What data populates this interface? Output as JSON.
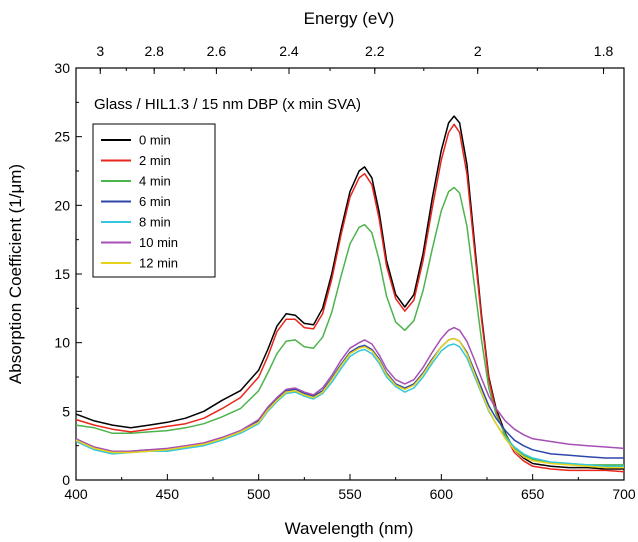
{
  "chart_data": {
    "type": "line",
    "xlabel": "Wavelength (nm)",
    "ylabel": "Absorption Coefficient (1/μm)",
    "top_axis_label": "Energy (eV)",
    "top_axis_ticks": [
      "3",
      "2.8",
      "2.6",
      "2.4",
      "2.2",
      "2",
      "1.8"
    ],
    "top_axis_tick_values_ev": [
      3,
      2.8,
      2.6,
      2.4,
      2.2,
      2,
      1.8
    ],
    "annotation": "Glass / HIL1.3 / 15 nm DBP (x min SVA)",
    "xlim": [
      400,
      700
    ],
    "ylim": [
      0,
      30
    ],
    "xticks": [
      400,
      450,
      500,
      550,
      600,
      650,
      700
    ],
    "yticks": [
      0,
      5,
      10,
      15,
      20,
      25,
      30
    ],
    "grid": false,
    "legend_position": "top-left",
    "x": [
      400,
      410,
      420,
      430,
      440,
      450,
      460,
      470,
      480,
      490,
      500,
      505,
      510,
      515,
      520,
      525,
      530,
      535,
      540,
      545,
      550,
      555,
      558,
      562,
      566,
      570,
      575,
      580,
      585,
      590,
      595,
      600,
      604,
      607,
      610,
      614,
      618,
      622,
      626,
      630,
      635,
      640,
      645,
      650,
      660,
      670,
      680,
      690,
      700
    ],
    "series": [
      {
        "name": "0 min",
        "color": "#000000",
        "values": [
          4.8,
          4.3,
          4.0,
          3.8,
          4.0,
          4.2,
          4.5,
          5.0,
          5.8,
          6.5,
          8.0,
          9.5,
          11.2,
          12.1,
          12.0,
          11.4,
          11.3,
          12.5,
          15.0,
          18.2,
          21.0,
          22.5,
          22.8,
          22.0,
          19.5,
          16.0,
          13.5,
          12.6,
          13.5,
          16.5,
          20.5,
          24.0,
          26.0,
          26.5,
          26.0,
          23.0,
          17.5,
          12.0,
          7.5,
          5.2,
          3.4,
          2.2,
          1.6,
          1.2,
          1.0,
          0.9,
          0.9,
          0.8,
          0.8
        ]
      },
      {
        "name": "2 min",
        "color": "#e8261c",
        "values": [
          4.4,
          4.0,
          3.7,
          3.5,
          3.7,
          3.9,
          4.1,
          4.5,
          5.2,
          6.0,
          7.5,
          9.0,
          10.8,
          11.7,
          11.7,
          11.1,
          11.0,
          12.1,
          14.6,
          17.8,
          20.6,
          22.0,
          22.3,
          21.5,
          19.0,
          15.6,
          13.2,
          12.3,
          13.1,
          16.0,
          19.8,
          23.3,
          25.3,
          25.9,
          25.3,
          22.3,
          17.0,
          11.7,
          7.3,
          5.0,
          3.2,
          2.0,
          1.4,
          1.0,
          0.8,
          0.7,
          0.7,
          0.7,
          0.6
        ]
      },
      {
        "name": "4 min",
        "color": "#4db34d",
        "values": [
          4.0,
          3.8,
          3.4,
          3.4,
          3.5,
          3.6,
          3.8,
          4.1,
          4.6,
          5.2,
          6.5,
          7.8,
          9.2,
          10.1,
          10.2,
          9.7,
          9.6,
          10.4,
          12.2,
          14.8,
          17.2,
          18.4,
          18.6,
          18.0,
          16.0,
          13.4,
          11.5,
          10.9,
          11.6,
          13.8,
          16.8,
          19.6,
          21.0,
          21.3,
          20.9,
          18.5,
          14.3,
          10.2,
          6.7,
          4.8,
          3.3,
          2.3,
          1.8,
          1.5,
          1.3,
          1.2,
          1.1,
          1.1,
          1.1
        ]
      },
      {
        "name": "6 min",
        "color": "#2e47a8",
        "values": [
          3.0,
          2.3,
          2.0,
          2.1,
          2.2,
          2.2,
          2.4,
          2.6,
          3.0,
          3.5,
          4.3,
          5.2,
          5.9,
          6.5,
          6.6,
          6.3,
          6.1,
          6.5,
          7.4,
          8.4,
          9.3,
          9.7,
          9.8,
          9.5,
          8.8,
          7.8,
          7.0,
          6.7,
          7.0,
          7.8,
          8.8,
          9.7,
          10.2,
          10.3,
          10.1,
          9.3,
          8.0,
          6.7,
          5.4,
          4.5,
          3.6,
          2.9,
          2.5,
          2.2,
          1.9,
          1.8,
          1.7,
          1.6,
          1.6
        ]
      },
      {
        "name": "8 min",
        "color": "#35c7de",
        "values": [
          2.8,
          2.2,
          1.9,
          2.0,
          2.1,
          2.1,
          2.3,
          2.5,
          2.9,
          3.4,
          4.1,
          5.0,
          5.7,
          6.3,
          6.4,
          6.1,
          5.9,
          6.3,
          7.1,
          8.1,
          9.0,
          9.4,
          9.5,
          9.2,
          8.5,
          7.5,
          6.8,
          6.4,
          6.7,
          7.5,
          8.5,
          9.4,
          9.8,
          9.9,
          9.7,
          8.9,
          7.6,
          6.3,
          5.0,
          4.1,
          3.1,
          2.4,
          1.9,
          1.6,
          1.3,
          1.2,
          1.1,
          1.0,
          1.0
        ]
      },
      {
        "name": "10 min",
        "color": "#a64fb5",
        "values": [
          3.0,
          2.4,
          2.1,
          2.1,
          2.2,
          2.3,
          2.5,
          2.7,
          3.1,
          3.6,
          4.4,
          5.3,
          6.0,
          6.6,
          6.7,
          6.4,
          6.2,
          6.7,
          7.6,
          8.7,
          9.6,
          10.0,
          10.2,
          9.9,
          9.1,
          8.1,
          7.3,
          7.0,
          7.3,
          8.2,
          9.3,
          10.3,
          10.9,
          11.1,
          10.9,
          10.1,
          8.8,
          7.4,
          6.1,
          5.2,
          4.3,
          3.7,
          3.3,
          3.0,
          2.8,
          2.6,
          2.5,
          2.4,
          2.3
        ]
      },
      {
        "name": "12 min",
        "color": "#e8d21c",
        "values": [
          2.9,
          2.3,
          2.0,
          2.0,
          2.1,
          2.2,
          2.4,
          2.6,
          3.0,
          3.5,
          4.2,
          5.1,
          5.8,
          6.4,
          6.5,
          6.2,
          6.0,
          6.4,
          7.3,
          8.3,
          9.2,
          9.6,
          9.7,
          9.4,
          8.7,
          7.7,
          6.9,
          6.6,
          6.9,
          7.7,
          8.7,
          9.7,
          10.2,
          10.3,
          10.1,
          9.2,
          7.8,
          6.4,
          5.1,
          4.1,
          3.0,
          2.2,
          1.7,
          1.4,
          1.2,
          1.1,
          1.0,
          0.9,
          0.9
        ]
      }
    ]
  }
}
